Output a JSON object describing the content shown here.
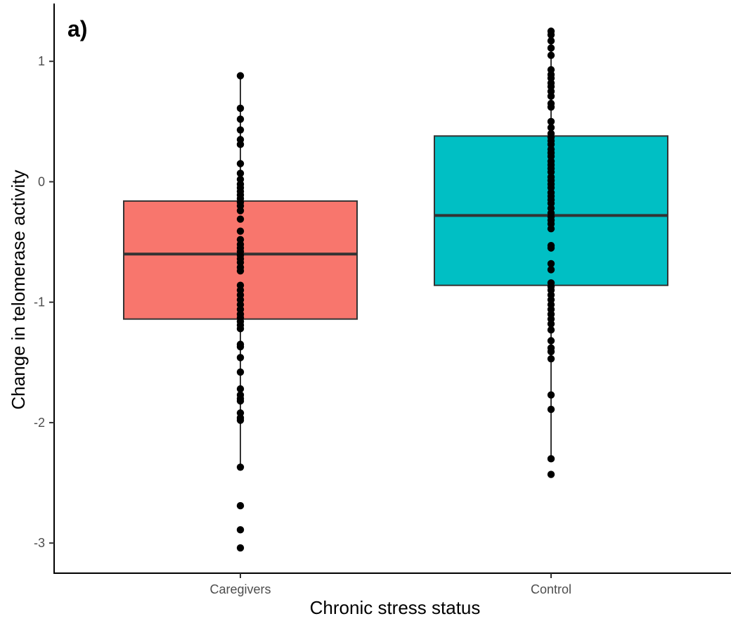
{
  "chart_data": {
    "type": "box",
    "panel_label": "a)",
    "xlabel": "Chronic stress status",
    "ylabel": "Change in telomerase activity",
    "categories": [
      "Caregivers",
      "Control"
    ],
    "ylim": [
      -3.25,
      1.48
    ],
    "yticks": [
      -3,
      -2,
      -1,
      0,
      1
    ],
    "yticks_labels": [
      "-3",
      "-2",
      "-1",
      "0",
      "1"
    ],
    "grid": false,
    "legend": "none",
    "boxes": [
      {
        "category": "Caregivers",
        "color": "#F8766D",
        "min": -2.37,
        "q1": -1.14,
        "median": -0.6,
        "q3": -0.16,
        "max": 0.88,
        "points": [
          0.88,
          0.61,
          0.52,
          0.43,
          0.35,
          0.31,
          0.15,
          0.07,
          0.02,
          -0.02,
          -0.05,
          -0.08,
          -0.11,
          -0.14,
          -0.17,
          -0.2,
          -0.24,
          -0.31,
          -0.41,
          -0.48,
          -0.52,
          -0.55,
          -0.58,
          -0.61,
          -0.64,
          -0.67,
          -0.71,
          -0.74,
          -0.86,
          -0.9,
          -0.94,
          -0.98,
          -1.02,
          -1.06,
          -1.1,
          -1.13,
          -1.16,
          -1.19,
          -1.22,
          -1.35,
          -1.37,
          -1.46,
          -1.58,
          -1.72,
          -1.77,
          -1.8,
          -1.82,
          -1.92,
          -1.96,
          -1.98,
          -2.37,
          -2.69,
          -2.89,
          -3.04
        ]
      },
      {
        "category": "Control",
        "color": "#00BFC4",
        "min": -2.3,
        "q1": -0.86,
        "median": -0.28,
        "q3": 0.38,
        "max": 1.25,
        "points": [
          1.25,
          1.22,
          1.17,
          1.11,
          1.05,
          0.93,
          0.89,
          0.86,
          0.82,
          0.79,
          0.75,
          0.71,
          0.65,
          0.62,
          0.5,
          0.45,
          0.4,
          0.37,
          0.34,
          0.31,
          0.27,
          0.24,
          0.21,
          0.17,
          0.14,
          0.11,
          0.08,
          0.04,
          0.01,
          -0.02,
          -0.05,
          -0.09,
          -0.12,
          -0.15,
          -0.18,
          -0.22,
          -0.26,
          -0.29,
          -0.32,
          -0.35,
          -0.39,
          -0.53,
          -0.55,
          -0.68,
          -0.73,
          -0.84,
          -0.87,
          -0.9,
          -0.94,
          -0.98,
          -1.02,
          -1.06,
          -1.1,
          -1.14,
          -1.18,
          -1.23,
          -1.32,
          -1.38,
          -1.41,
          -1.47,
          -1.77,
          -1.89,
          -2.3,
          -2.43
        ]
      }
    ]
  }
}
